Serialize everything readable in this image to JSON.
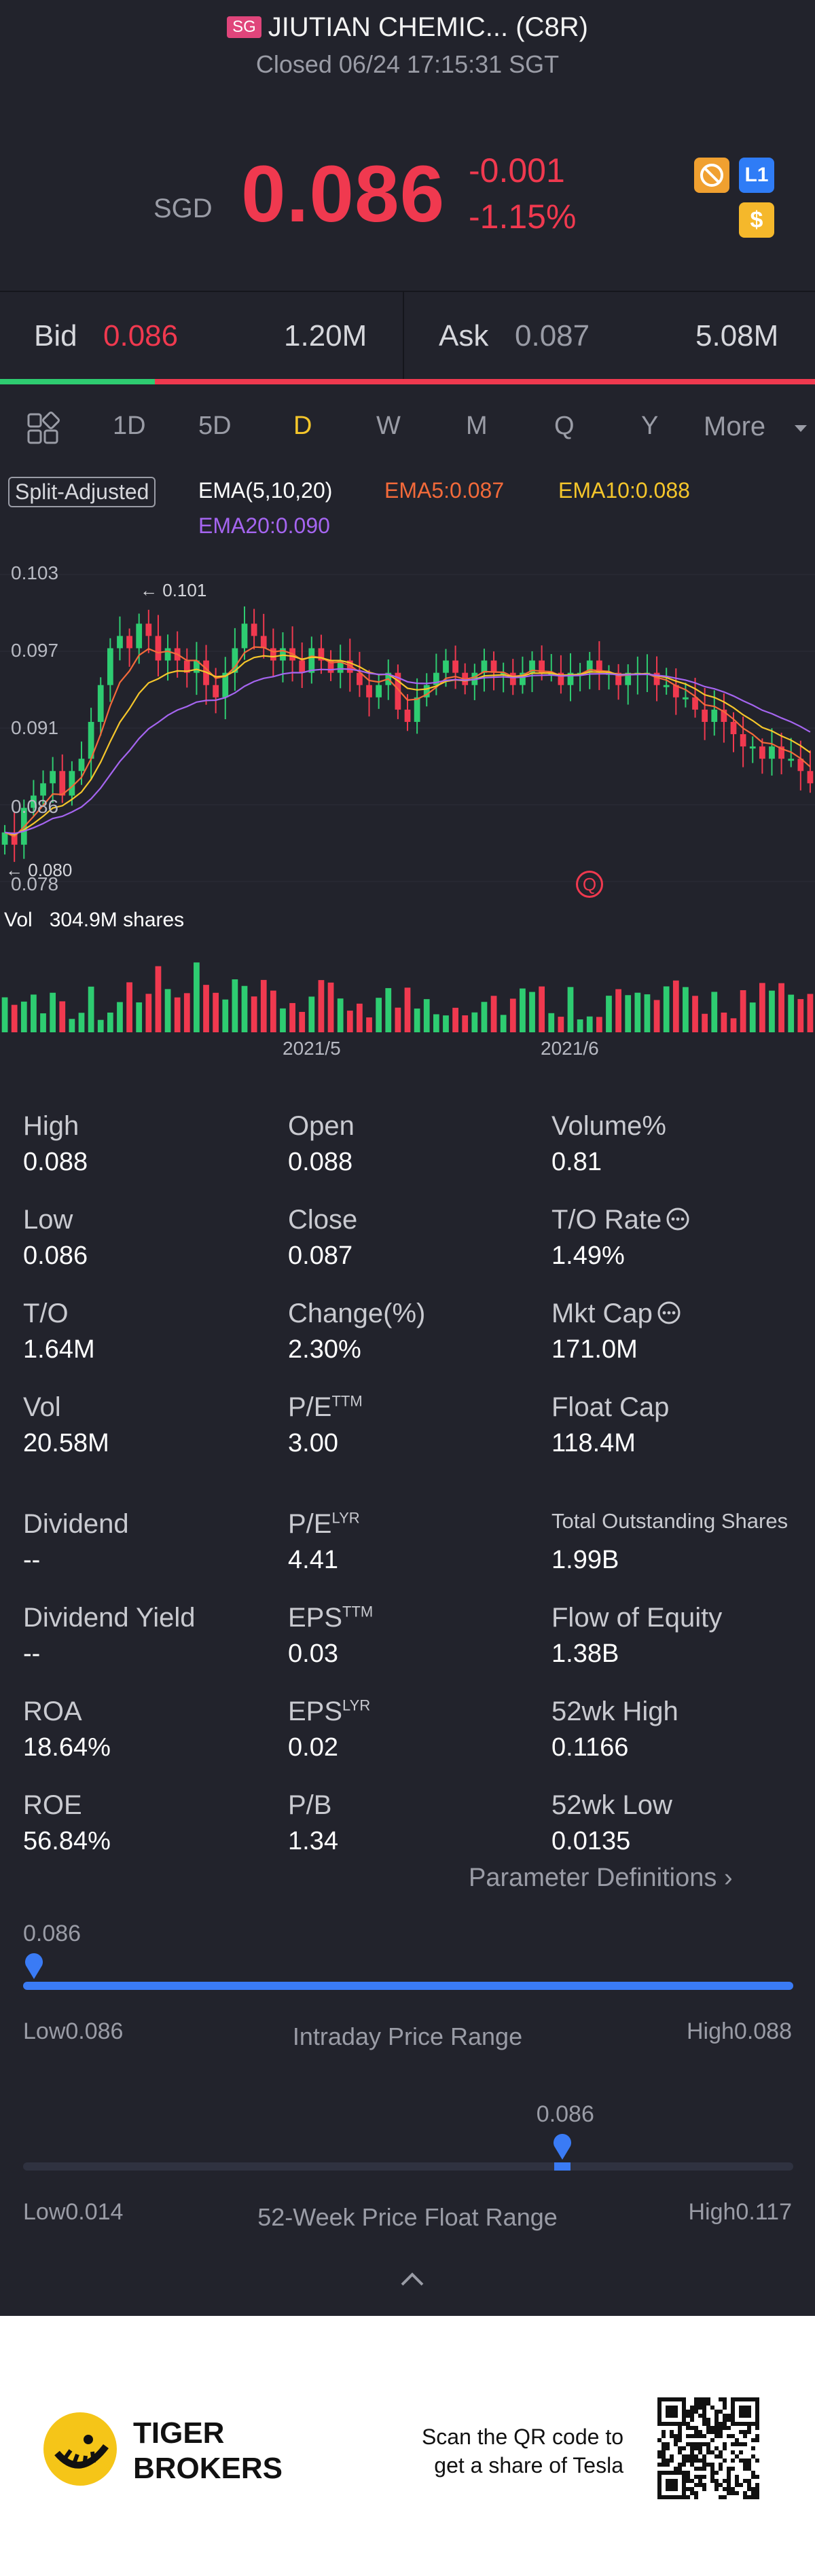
{
  "header": {
    "badge": "SG",
    "title": "JIUTIAN CHEMIC... (C8R)",
    "status": "Closed 06/24 17:15:31 SGT"
  },
  "quote": {
    "currency": "SGD",
    "price": "0.086",
    "change": "-0.001",
    "change_pct": "-1.15%",
    "icon_l1": "L1",
    "icon_dollar": "$"
  },
  "bidask": {
    "bid_label": "Bid",
    "bid_price": "0.086",
    "bid_volume": "1.20M",
    "ask_label": "Ask",
    "ask_price": "0.087",
    "ask_volume": "5.08M",
    "bid_ratio": 0.19
  },
  "tabs": [
    "1D",
    "5D",
    "D",
    "W",
    "M",
    "Q",
    "Y",
    "More"
  ],
  "active_tab": "D",
  "indicators": {
    "split": "Split-Adjusted",
    "ema": "EMA(5,10,20)",
    "ema5": "EMA5:0.087",
    "ema10": "EMA10:0.088",
    "ema20": "EMA20:0.090",
    "colors": {
      "ema5": "#f36a3a",
      "ema10": "#f5c62b",
      "ema20": "#a565f0",
      "up": "#2ecc71",
      "down": "#f0394f"
    }
  },
  "chart_data": {
    "type": "candlestick",
    "ylim": [
      0.078,
      0.103
    ],
    "y_ticks": [
      "0.103",
      "0.097",
      "0.091",
      "0.086",
      "0.078"
    ],
    "x_labels": [
      "2021/5",
      "2021/6"
    ],
    "max_annotation": "0.101",
    "min_annotation": "0.080",
    "marker": "Q",
    "volume_label": "Vol",
    "volume_value": "304.9M shares",
    "closes": [
      0.082,
      0.081,
      0.084,
      0.085,
      0.086,
      0.087,
      0.085,
      0.087,
      0.088,
      0.091,
      0.094,
      0.097,
      0.098,
      0.097,
      0.099,
      0.098,
      0.096,
      0.097,
      0.096,
      0.095,
      0.096,
      0.094,
      0.093,
      0.095,
      0.097,
      0.099,
      0.098,
      0.097,
      0.096,
      0.097,
      0.096,
      0.095,
      0.097,
      0.096,
      0.095,
      0.096,
      0.095,
      0.094,
      0.093,
      0.094,
      0.095,
      0.092,
      0.091,
      0.093,
      0.094,
      0.095,
      0.096,
      0.095,
      0.094,
      0.095,
      0.096,
      0.095,
      0.095,
      0.094,
      0.095,
      0.096,
      0.095,
      0.095,
      0.094,
      0.095,
      0.095,
      0.096,
      0.095,
      0.095,
      0.094,
      0.095,
      0.095,
      0.095,
      0.094,
      0.094,
      0.093,
      0.093,
      0.092,
      0.091,
      0.092,
      0.091,
      0.09,
      0.089,
      0.089,
      0.088,
      0.089,
      0.088,
      0.088,
      0.087,
      0.086
    ]
  },
  "stats": [
    {
      "label": "High",
      "value": "0.088"
    },
    {
      "label": "Open",
      "value": "0.088"
    },
    {
      "label": "Volume%",
      "value": "0.81"
    },
    {
      "label": "Low",
      "value": "0.086"
    },
    {
      "label": "Close",
      "value": "0.087"
    },
    {
      "label": "T/O Rate",
      "value": "1.49%"
    },
    {
      "label": "T/O",
      "value": "1.64M"
    },
    {
      "label": "Change(%)",
      "value": "2.30%"
    },
    {
      "label": "Mkt Cap",
      "value": "171.0M"
    },
    {
      "label": "Vol",
      "value": "20.58M"
    },
    {
      "label": "P/E",
      "sup": "TTM",
      "value": "3.00"
    },
    {
      "label": "Float Cap",
      "value": "118.4M"
    },
    {
      "label": "Dividend",
      "value": "--"
    },
    {
      "label": "P/E",
      "sup": "LYR",
      "value": "4.41"
    },
    {
      "label": "Total Outstanding Shares",
      "value": "1.99B"
    },
    {
      "label": "Dividend Yield",
      "value": "--"
    },
    {
      "label": "EPS",
      "sup": "TTM",
      "value": "0.03"
    },
    {
      "label": "Flow of Equity",
      "value": "1.38B"
    },
    {
      "label": "ROA",
      "value": "18.64%"
    },
    {
      "label": "EPS",
      "sup": "LYR",
      "value": "0.02"
    },
    {
      "label": "52wk High",
      "value": "0.1166"
    },
    {
      "label": "ROE",
      "value": "56.84%"
    },
    {
      "label": "P/B",
      "value": "1.34"
    },
    {
      "label": "52wk Low",
      "value": "0.0135"
    }
  ],
  "param_link": "Parameter Definitions",
  "intraday": {
    "current": "0.086",
    "low": "Low0.086",
    "high": "High0.088",
    "title": "Intraday Price Range",
    "position": 0.0
  },
  "week52": {
    "current": "0.086",
    "low": "Low0.014",
    "high": "High0.117",
    "title": "52-Week Price Float Range",
    "position": 0.7
  },
  "footer": {
    "brand_line1": "TIGER",
    "brand_line2": "BROKERS",
    "qr_text1": "Scan the QR code to",
    "qr_text2": "get a share of Tesla"
  }
}
